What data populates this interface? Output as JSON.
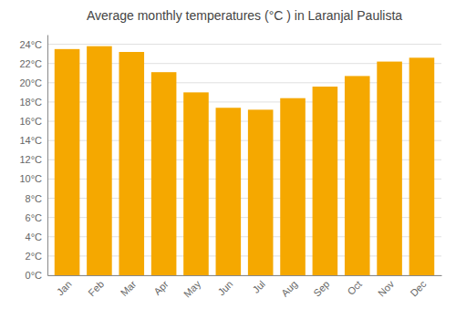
{
  "chart_data": {
    "type": "bar",
    "title": "Average monthly temperatures (°C ) in Laranjal Paulista",
    "categories": [
      "Jan",
      "Feb",
      "Mar",
      "Apr",
      "May",
      "Jun",
      "Jul",
      "Aug",
      "Sep",
      "Oct",
      "Nov",
      "Dec"
    ],
    "values": [
      23.5,
      23.8,
      23.2,
      21.1,
      19.0,
      17.4,
      17.2,
      18.4,
      19.6,
      20.7,
      22.2,
      22.6
    ],
    "color": "#F5A800",
    "ylim": [
      0,
      25
    ],
    "yticks": [
      {
        "value": 0,
        "label": "0°C"
      },
      {
        "value": 2,
        "label": "2°C"
      },
      {
        "value": 4,
        "label": "4°C"
      },
      {
        "value": 6,
        "label": "6°C"
      },
      {
        "value": 8,
        "label": "8°C"
      },
      {
        "value": 10,
        "label": "10°C"
      },
      {
        "value": 12,
        "label": "12°C"
      },
      {
        "value": 14,
        "label": "14°C"
      },
      {
        "value": 16,
        "label": "16°C"
      },
      {
        "value": 18,
        "label": "18°C"
      },
      {
        "value": 20,
        "label": "20°C"
      },
      {
        "value": 22,
        "label": "22°C"
      },
      {
        "value": 24,
        "label": "24°C"
      }
    ],
    "grid": true
  }
}
